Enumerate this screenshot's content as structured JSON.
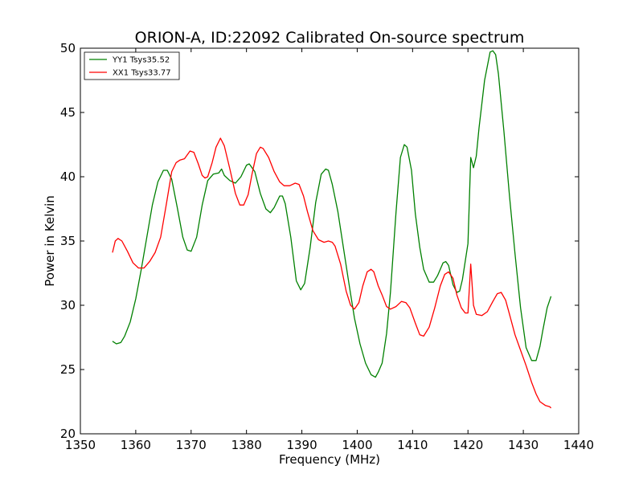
{
  "chart_data": {
    "type": "line",
    "title": "ORION-A, ID:22092 Calibrated On-source spectrum",
    "xlabel": "Frequency (MHz)",
    "ylabel": "Power in Kelvin",
    "xlim": [
      1350,
      1440
    ],
    "ylim": [
      20,
      50
    ],
    "xticks": [
      1350,
      1360,
      1370,
      1380,
      1390,
      1400,
      1410,
      1420,
      1430,
      1440
    ],
    "yticks": [
      20,
      25,
      30,
      35,
      40,
      45,
      50
    ],
    "grid": false,
    "legend_position": "top-left",
    "series": [
      {
        "name": "YY1 Tsys35.52",
        "color": "#008000",
        "x": [
          1355.8,
          1356.5,
          1357.3,
          1358.0,
          1359.0,
          1360.0,
          1361.0,
          1362.0,
          1363.0,
          1364.0,
          1365.0,
          1365.7,
          1366.5,
          1367.5,
          1368.5,
          1369.3,
          1370.0,
          1371.0,
          1372.0,
          1373.0,
          1374.0,
          1375.0,
          1375.5,
          1376.0,
          1377.0,
          1378.0,
          1379.0,
          1380.0,
          1380.5,
          1381.5,
          1382.5,
          1383.5,
          1384.3,
          1385.0,
          1386.0,
          1386.5,
          1387.0,
          1388.0,
          1389.0,
          1389.8,
          1390.5,
          1391.5,
          1392.5,
          1393.5,
          1394.3,
          1394.8,
          1395.5,
          1396.5,
          1397.5,
          1398.5,
          1399.5,
          1400.5,
          1401.5,
          1402.5,
          1403.3,
          1403.8,
          1404.5,
          1405.3,
          1406.0,
          1407.0,
          1407.8,
          1408.5,
          1409.0,
          1409.8,
          1410.5,
          1411.3,
          1412.0,
          1413.0,
          1413.8,
          1414.5,
          1415.5,
          1416.0,
          1416.5,
          1417.3,
          1418.0,
          1418.5,
          1419.0,
          1420.0,
          1420.5,
          1421.0,
          1421.5,
          1422.0,
          1423.0,
          1424.0,
          1424.5,
          1425.0,
          1425.5,
          1426.5,
          1427.5,
          1428.5,
          1429.5,
          1430.5,
          1431.5,
          1432.3,
          1433.0,
          1433.5,
          1434.3,
          1435.0
        ],
        "y": [
          27.2,
          27.0,
          27.1,
          27.6,
          28.7,
          30.5,
          32.8,
          35.3,
          37.8,
          39.6,
          40.5,
          40.5,
          39.8,
          37.6,
          35.3,
          34.3,
          34.2,
          35.3,
          37.8,
          39.7,
          40.2,
          40.3,
          40.6,
          40.1,
          39.7,
          39.5,
          40.0,
          40.9,
          41.0,
          40.4,
          38.7,
          37.5,
          37.2,
          37.6,
          38.5,
          38.5,
          37.9,
          35.3,
          31.9,
          31.2,
          31.7,
          34.5,
          38.0,
          40.2,
          40.6,
          40.5,
          39.4,
          37.3,
          34.5,
          31.7,
          29.0,
          27.0,
          25.5,
          24.6,
          24.4,
          24.8,
          25.5,
          27.8,
          31.0,
          37.2,
          41.5,
          42.5,
          42.3,
          40.5,
          37.1,
          34.5,
          32.8,
          31.8,
          31.8,
          32.3,
          33.3,
          33.4,
          33.1,
          31.6,
          31.0,
          31.1,
          32.0,
          34.8,
          41.5,
          40.7,
          41.6,
          43.8,
          47.5,
          49.7,
          49.8,
          49.5,
          48.0,
          43.5,
          38.5,
          34.0,
          29.8,
          26.7,
          25.7,
          25.7,
          26.8,
          28.0,
          29.8,
          30.7
        ]
      },
      {
        "name": "XX1 Tsys33.77",
        "color": "#ff0000",
        "x": [
          1355.8,
          1356.3,
          1356.8,
          1357.5,
          1358.5,
          1359.5,
          1360.5,
          1361.5,
          1362.5,
          1363.5,
          1364.5,
          1365.5,
          1366.5,
          1367.3,
          1368.0,
          1368.8,
          1369.8,
          1370.5,
          1371.3,
          1372.0,
          1372.5,
          1373.0,
          1373.8,
          1374.5,
          1375.3,
          1376.0,
          1377.0,
          1378.0,
          1378.8,
          1379.5,
          1380.3,
          1381.0,
          1381.8,
          1382.5,
          1383.0,
          1384.0,
          1385.0,
          1386.0,
          1386.8,
          1387.8,
          1388.8,
          1389.5,
          1390.3,
          1391.0,
          1392.0,
          1393.0,
          1394.0,
          1394.8,
          1395.5,
          1396.0,
          1397.0,
          1398.0,
          1398.8,
          1399.5,
          1400.3,
          1401.0,
          1401.8,
          1402.5,
          1403.0,
          1403.8,
          1404.5,
          1405.3,
          1406.0,
          1407.0,
          1408.0,
          1408.8,
          1409.5,
          1410.5,
          1411.3,
          1412.0,
          1413.0,
          1414.0,
          1415.0,
          1415.8,
          1416.5,
          1417.3,
          1418.0,
          1418.8,
          1419.5,
          1420.0,
          1420.5,
          1421.0,
          1421.5,
          1422.5,
          1423.5,
          1424.5,
          1425.3,
          1426.0,
          1426.8,
          1427.5,
          1428.5,
          1429.5,
          1430.5,
          1431.5,
          1432.3,
          1433.0,
          1434.0,
          1434.8,
          1435.0
        ],
        "y": [
          34.1,
          35.0,
          35.2,
          35.0,
          34.2,
          33.3,
          32.9,
          32.9,
          33.4,
          34.1,
          35.3,
          37.8,
          40.4,
          41.1,
          41.3,
          41.4,
          42.0,
          41.9,
          41.0,
          40.1,
          39.9,
          40.0,
          41.1,
          42.3,
          43.0,
          42.4,
          40.6,
          38.7,
          37.8,
          37.8,
          38.6,
          40.2,
          41.8,
          42.3,
          42.2,
          41.5,
          40.4,
          39.6,
          39.3,
          39.3,
          39.5,
          39.4,
          38.5,
          37.3,
          35.8,
          35.1,
          34.9,
          35.0,
          34.9,
          34.6,
          33.2,
          31.1,
          30.0,
          29.7,
          30.2,
          31.5,
          32.6,
          32.8,
          32.6,
          31.5,
          30.8,
          29.9,
          29.7,
          29.9,
          30.3,
          30.2,
          29.8,
          28.6,
          27.7,
          27.6,
          28.3,
          29.8,
          31.5,
          32.4,
          32.6,
          32.1,
          30.8,
          29.8,
          29.4,
          29.4,
          33.2,
          30.0,
          29.3,
          29.2,
          29.5,
          30.3,
          30.9,
          31.0,
          30.4,
          29.3,
          27.7,
          26.5,
          25.3,
          24.0,
          23.1,
          22.5,
          22.2,
          22.1,
          22.0
        ]
      }
    ]
  }
}
